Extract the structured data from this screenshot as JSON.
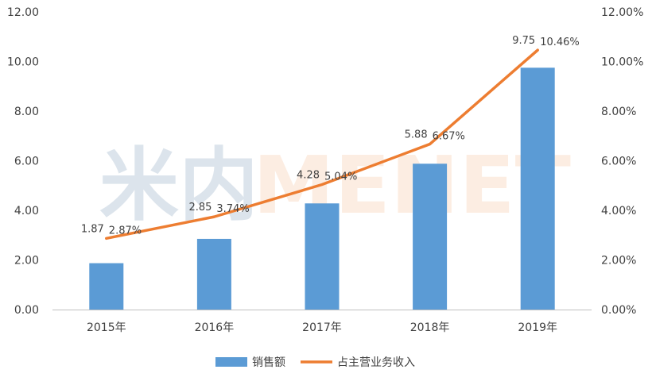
{
  "chart_data": {
    "type": "bar",
    "categories": [
      "2015年",
      "2016年",
      "2017年",
      "2018年",
      "2019年"
    ],
    "series": [
      {
        "name": "销售额",
        "type": "bar",
        "axis": "left",
        "values": [
          1.87,
          2.85,
          4.28,
          5.88,
          9.75
        ],
        "labels": [
          "1.87",
          "2.85",
          "4.28",
          "5.88",
          "9.75"
        ],
        "color": "#5B9BD5"
      },
      {
        "name": "占主营业务收入",
        "type": "line",
        "axis": "right",
        "values": [
          2.87,
          3.74,
          5.04,
          6.67,
          10.46
        ],
        "labels": [
          "2.87%",
          "3.74%",
          "5.04%",
          "6.67%",
          "10.46%"
        ],
        "color": "#ED7D31"
      }
    ],
    "left_axis": {
      "ylim": [
        0,
        12
      ],
      "ticks": [
        "0.00",
        "2.00",
        "4.00",
        "6.00",
        "8.00",
        "10.00",
        "12.00"
      ]
    },
    "right_axis": {
      "ylim": [
        0,
        12
      ],
      "ticks": [
        "0.00%",
        "2.00%",
        "4.00%",
        "6.00%",
        "8.00%",
        "10.00%",
        "12.00%"
      ]
    },
    "grid": false,
    "legend_position": "bottom",
    "watermark": "米内MENET"
  }
}
